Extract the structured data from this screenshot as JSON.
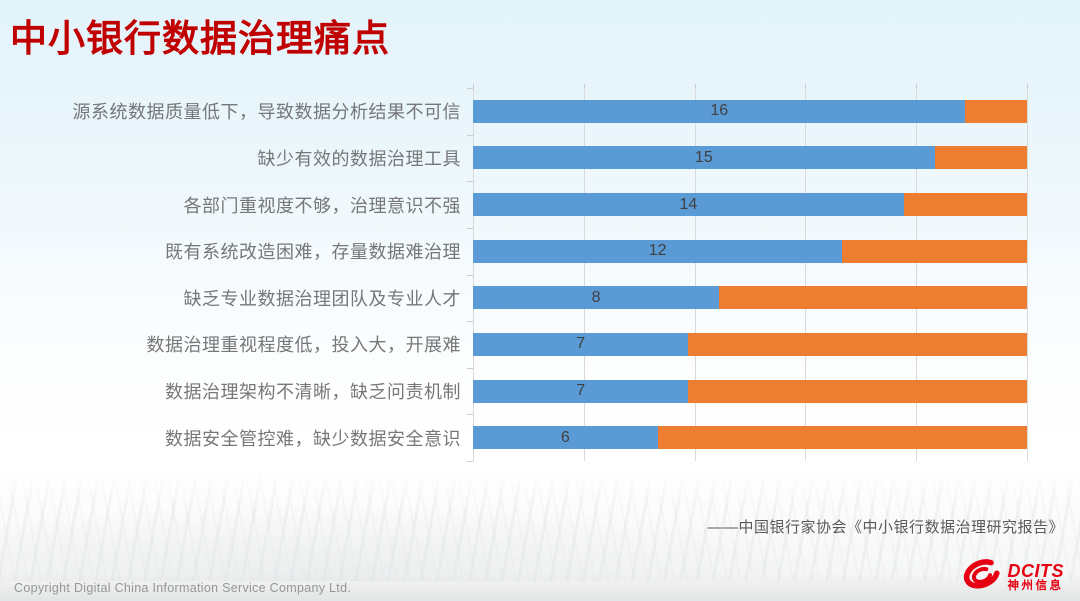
{
  "title": "中小银行数据治理痛点",
  "source": "——中国银行家协会《中小银行数据治理研究报告》",
  "footer": {
    "copyright": "Copyright  Digital China Information Service Company Ltd.",
    "logo_text": "DCITS",
    "logo_cn": "神州信息"
  },
  "colors": {
    "title": "#c00000",
    "series_blue": "#5b9bd5",
    "series_orange": "#ed7d31",
    "gridline": "#d9d9d9",
    "category_label": "#767779",
    "value_label": "#404040",
    "logo_red": "#e60012"
  },
  "chart_data": {
    "type": "bar",
    "subtype": "horizontal-100pct-stacked",
    "categories": [
      "源系统数据质量低下，导致数据分析结果不可信",
      "缺少有效的数据治理工具",
      "各部门重视度不够，治理意识不强",
      "既有系统改造困难，存量数据难治理",
      "缺乏专业数据治理团队及专业人才",
      "数据治理重视程度低，投入大，开展难",
      "数据治理架构不清晰，缺乏问责机制",
      "数据安全管控难，缺少数据安全意识"
    ],
    "series": [
      {
        "name": "series-blue",
        "values": [
          16,
          15,
          14,
          12,
          8,
          7,
          7,
          6
        ]
      },
      {
        "name": "series-orange",
        "values": [
          2,
          3,
          4,
          6,
          10,
          11,
          11,
          12
        ]
      }
    ],
    "total_per_category": 18,
    "value_labels": "blue series values shown centered inside blue segments",
    "xlim_pct": [
      0,
      100
    ],
    "gridlines_pct": [
      0,
      20,
      40,
      60,
      80,
      100
    ],
    "legend": "none",
    "axis_tick_labels": "none"
  }
}
